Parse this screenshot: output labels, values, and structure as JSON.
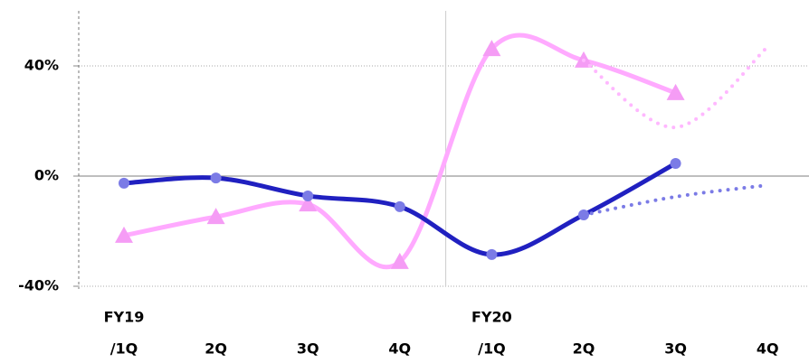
{
  "chart_data": {
    "type": "line",
    "categories": [
      "/1Q",
      "2Q",
      "3Q",
      "4Q",
      "/1Q",
      "2Q",
      "3Q",
      "4Q"
    ],
    "groups": [
      {
        "label": "FY19",
        "start": 0
      },
      {
        "label": "FY20",
        "start": 4
      }
    ],
    "series": [
      {
        "color": "#ffaaff",
        "marker": "triangle",
        "marker_color": "#f59cf5",
        "values": [
          -21.6,
          -14.8,
          -10.2,
          -31.1,
          46.2,
          42,
          30.2,
          null
        ]
      },
      {
        "color": "#ffb8ff",
        "dash": "dotted",
        "values": [
          null,
          null,
          null,
          null,
          null,
          42,
          17.7,
          46.9
        ]
      },
      {
        "color": "#2020c0",
        "marker": "circle",
        "marker_color": "#7b7be6",
        "values": [
          -2.6,
          -0.7,
          -7.2,
          -11.1,
          -28.5,
          -14.1,
          4.6,
          null
        ]
      },
      {
        "color": "#7b7be6",
        "dash": "dotted",
        "values": [
          null,
          null,
          null,
          null,
          null,
          -14.1,
          -7.5,
          -3.3
        ]
      }
    ],
    "ylim": [
      -40,
      60
    ],
    "yticks": [
      {
        "value": -40,
        "label": "-40%"
      },
      {
        "value": 0,
        "label": "0%"
      },
      {
        "value": 40,
        "label": "40%"
      }
    ],
    "grid": true
  }
}
